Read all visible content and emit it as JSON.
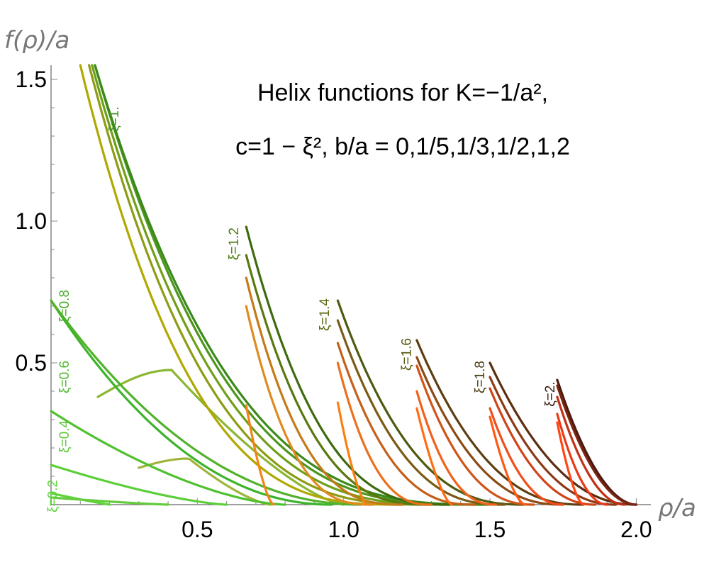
{
  "chart_data": {
    "type": "line",
    "title_lines": [
      "Helix functions for K=−1/a², ",
      "c=1 − ξ², b/a = 0,1/5,1/3,1/2,1,2"
    ],
    "xlabel": "ρ/a",
    "ylabel": "f(ρ)/a",
    "xlim": [
      0,
      2.05
    ],
    "ylim": [
      0,
      1.55
    ],
    "xticks": [
      {
        "v": 0.5,
        "label": "0.5"
      },
      {
        "v": 1.0,
        "label": "1.0"
      },
      {
        "v": 1.5,
        "label": "1.5"
      },
      {
        "v": 2.0,
        "label": "2.0"
      }
    ],
    "yticks": [
      {
        "v": 0.5,
        "label": "0.5"
      },
      {
        "v": 1.0,
        "label": "1.0"
      },
      {
        "v": 1.5,
        "label": "1.5"
      }
    ],
    "families": [
      {
        "label": "ξ=0.2",
        "color": "#5ed63a",
        "label_at": [
          0.02,
          0.03
        ],
        "curves": [
          {
            "x0": 0,
            "y0": 0.04,
            "x1": 0.2,
            "k": 1.1,
            "color": "#5ed63a"
          },
          {
            "x0": 0,
            "y0": 0.025,
            "x1": 0.4,
            "k": 1.2,
            "color": "#64cc3c"
          }
        ]
      },
      {
        "label": "ξ=0.4",
        "color": "#5ec93a",
        "label_at": [
          0.06,
          0.24
        ],
        "curves": [
          {
            "x0": 0,
            "y0": 0.14,
            "x1": 0.6,
            "k": 1.4,
            "color": "#5ccf3a"
          },
          {
            "x0": 0.3,
            "y0": 0.13,
            "x1": 0.75,
            "k": 1.3,
            "color": "#9fb43a",
            "peak": 0.38
          }
        ]
      },
      {
        "label": "ξ=0.6",
        "color": "#4eba2e",
        "label_at": [
          0.06,
          0.45
        ],
        "curves": [
          {
            "x0": 0,
            "y0": 0.33,
            "x1": 0.8,
            "k": 1.6,
            "color": "#4fc12f"
          },
          {
            "x0": 0.16,
            "y0": 0.38,
            "x1": 1.0,
            "k": 1.6,
            "color": "#8ab632",
            "peak": 0.3
          }
        ]
      },
      {
        "label": "ξ=0.8",
        "color": "#47ad2a",
        "label_at": [
          0.06,
          0.7
        ],
        "curves": [
          {
            "x0": 0,
            "y0": 0.72,
            "x1": 0.96,
            "k": 2.1,
            "color": "#3cb42a"
          },
          {
            "x0": 0,
            "y0": 0.72,
            "x1": 1.06,
            "k": 2.1,
            "color": "#52b22c"
          }
        ]
      },
      {
        "label": "ξ=1.",
        "color": "#3f8f1f",
        "label_at": [
          0.23,
          1.36
        ],
        "curves": [
          {
            "x0": 0.1,
            "y0": 1.55,
            "x1": 1.2,
            "k": 3.0,
            "color": "#b0a800"
          },
          {
            "x0": 0.13,
            "y0": 1.55,
            "x1": 1.3,
            "k": 3.0,
            "color": "#8c9c14"
          },
          {
            "x0": 0.14,
            "y0": 1.55,
            "x1": 1.38,
            "k": 3.0,
            "color": "#6f9f18"
          },
          {
            "x0": 0.15,
            "y0": 1.55,
            "x1": 1.45,
            "k": 3.0,
            "color": "#4d961c"
          },
          {
            "x0": 0.15,
            "y0": 1.55,
            "x1": 1.5,
            "k": 3.0,
            "color": "#3a8a1a"
          }
        ]
      },
      {
        "label": "ξ=1.2",
        "color": "#4e7a10",
        "label_at": [
          0.64,
          0.92
        ],
        "curves": [
          {
            "x0": 0.667,
            "y0": 0.98,
            "x1": 1.36,
            "k": 2.8,
            "color": "#3e6a10"
          },
          {
            "x0": 0.667,
            "y0": 0.88,
            "x1": 1.3,
            "k": 2.8,
            "color": "#5a7810"
          },
          {
            "x0": 0.667,
            "y0": 0.8,
            "x1": 1.2,
            "k": 2.8,
            "color": "#c47a18"
          },
          {
            "x0": 0.667,
            "y0": 0.7,
            "x1": 1.1,
            "k": 2.8,
            "color": "#e08a20"
          },
          {
            "x0": 0.667,
            "y0": 0.35,
            "x1": 0.76,
            "k": 1.5,
            "color": "#f28418"
          }
        ]
      },
      {
        "label": "ξ=1.4",
        "color": "#5a6a10",
        "label_at": [
          0.95,
          0.67
        ],
        "curves": [
          {
            "x0": 0.98,
            "y0": 0.72,
            "x1": 1.62,
            "k": 2.6,
            "color": "#4e5a10"
          },
          {
            "x0": 0.98,
            "y0": 0.65,
            "x1": 1.55,
            "k": 2.6,
            "color": "#7a5a14"
          },
          {
            "x0": 0.98,
            "y0": 0.57,
            "x1": 1.45,
            "k": 2.6,
            "color": "#c4601a"
          },
          {
            "x0": 0.98,
            "y0": 0.5,
            "x1": 1.3,
            "k": 2.6,
            "color": "#ea701c"
          },
          {
            "x0": 0.98,
            "y0": 0.36,
            "x1": 1.08,
            "k": 1.5,
            "color": "#fb7f12"
          }
        ]
      },
      {
        "label": "ξ=1.6",
        "color": "#5a5a10",
        "label_at": [
          1.23,
          0.53
        ],
        "curves": [
          {
            "x0": 1.25,
            "y0": 0.58,
            "x1": 1.82,
            "k": 2.4,
            "color": "#5e3e10"
          },
          {
            "x0": 1.25,
            "y0": 0.52,
            "x1": 1.75,
            "k": 2.4,
            "color": "#8a4a14"
          },
          {
            "x0": 1.25,
            "y0": 0.49,
            "x1": 1.65,
            "k": 2.4,
            "color": "#d05418"
          },
          {
            "x0": 1.25,
            "y0": 0.4,
            "x1": 1.52,
            "k": 2.4,
            "color": "#f0621a"
          },
          {
            "x0": 1.25,
            "y0": 0.34,
            "x1": 1.37,
            "k": 1.5,
            "color": "#ff6d14"
          }
        ]
      },
      {
        "label": "ξ=1.8",
        "color": "#4a3e10",
        "label_at": [
          1.48,
          0.45
        ],
        "curves": [
          {
            "x0": 1.5,
            "y0": 0.5,
            "x1": 2.0,
            "k": 2.2,
            "color": "#5a2e10"
          },
          {
            "x0": 1.5,
            "y0": 0.45,
            "x1": 1.93,
            "k": 2.2,
            "color": "#8a3a14"
          },
          {
            "x0": 1.5,
            "y0": 0.41,
            "x1": 1.86,
            "k": 2.2,
            "color": "#d04418"
          },
          {
            "x0": 1.5,
            "y0": 0.34,
            "x1": 1.75,
            "k": 2.2,
            "color": "#f04e1a"
          },
          {
            "x0": 1.5,
            "y0": 0.31,
            "x1": 1.62,
            "k": 1.6,
            "color": "#ff5a14"
          }
        ]
      },
      {
        "label": "ξ=2.",
        "color": "#3a1e0e",
        "label_at": [
          1.72,
          0.39
        ],
        "curves": [
          {
            "x0": 1.73,
            "y0": 0.44,
            "x1": 2.0,
            "k": 1.9,
            "color": "#4a1a0e"
          },
          {
            "x0": 1.73,
            "y0": 0.42,
            "x1": 2.0,
            "k": 2.0,
            "color": "#7a2412"
          },
          {
            "x0": 1.73,
            "y0": 0.38,
            "x1": 1.96,
            "k": 2.0,
            "color": "#c03016"
          },
          {
            "x0": 1.73,
            "y0": 0.32,
            "x1": 1.9,
            "k": 2.0,
            "color": "#e83a18"
          },
          {
            "x0": 1.73,
            "y0": 0.29,
            "x1": 1.82,
            "k": 1.6,
            "color": "#ff4614"
          }
        ]
      }
    ]
  }
}
